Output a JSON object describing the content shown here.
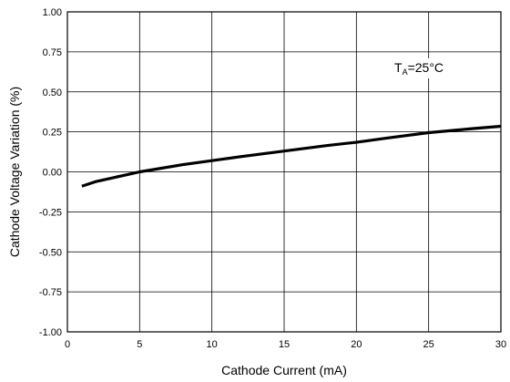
{
  "chart_data": {
    "type": "line",
    "xlabel": "Cathode Current (mA)",
    "ylabel": "Cathode Voltage Variation (%)",
    "xlim": [
      0,
      30
    ],
    "ylim": [
      -1.0,
      1.0
    ],
    "x_ticks": [
      "0",
      "5",
      "10",
      "15",
      "20",
      "25",
      "30"
    ],
    "y_ticks": [
      "1.00",
      "0.75",
      "0.50",
      "0.25",
      "0.00",
      "-0.25",
      "-0.50",
      "-0.75",
      "-1.00"
    ],
    "grid": true,
    "annotation": {
      "main": "T",
      "sub": "A",
      "rest": "=25°C"
    },
    "series": [
      {
        "x": [
          1,
          2,
          3,
          4,
          5,
          6,
          8,
          10,
          12,
          15,
          18,
          20,
          22,
          25,
          28,
          30
        ],
        "y": [
          -0.09,
          -0.06,
          -0.04,
          -0.02,
          0.0,
          0.015,
          0.045,
          0.07,
          0.095,
          0.13,
          0.165,
          0.185,
          0.21,
          0.245,
          0.27,
          0.285
        ]
      }
    ],
    "colors": {
      "line": "#000000",
      "grid": "#000000"
    }
  }
}
